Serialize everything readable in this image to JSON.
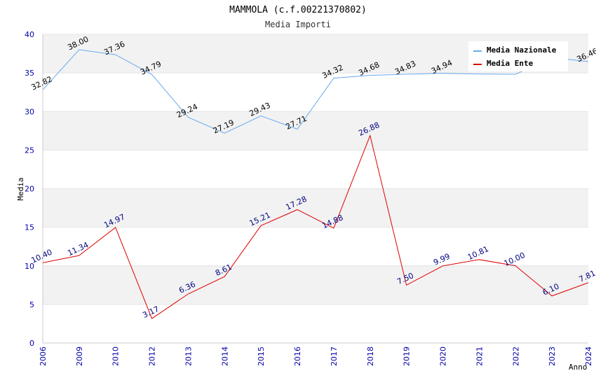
{
  "chart_data": {
    "type": "line",
    "title": "MAMMOLA (c.f.00221370802)",
    "subtitle": "Media Importi",
    "xlabel": "Anno",
    "ylabel": "Media",
    "ylim": [
      0,
      40
    ],
    "yticks": [
      0,
      5,
      10,
      15,
      20,
      25,
      30,
      35,
      40
    ],
    "categories": [
      "2006",
      "2009",
      "2010",
      "2012",
      "2013",
      "2014",
      "2015",
      "2016",
      "2017",
      "2018",
      "2019",
      "2020",
      "2021",
      "2022",
      "2023",
      "2024"
    ],
    "legend_position": "top-right",
    "series": [
      {
        "name": "Media Nazionale",
        "color": "#66aaee",
        "label_color": "#000000",
        "values": [
          32.82,
          38.0,
          37.36,
          34.79,
          29.24,
          27.19,
          29.43,
          27.71,
          34.32,
          34.68,
          34.83,
          34.94,
          34.85,
          34.82,
          37.0,
          36.46
        ],
        "labels": [
          "32.82",
          "38.00",
          "37.36",
          "34.79",
          "29.24",
          "27.19",
          "29.43",
          "27.71",
          "34.32",
          "34.68",
          "34.83",
          "34.94",
          "",
          "",
          "",
          "36.46"
        ]
      },
      {
        "name": "Media Ente",
        "color": "#dd0000",
        "label_color": "#000080",
        "values": [
          10.4,
          11.34,
          14.97,
          3.17,
          6.36,
          8.61,
          15.21,
          17.28,
          14.88,
          26.88,
          7.5,
          9.99,
          10.81,
          10.0,
          6.1,
          7.81
        ],
        "labels": [
          "10.40",
          "11.34",
          "14.97",
          "3.17",
          "6.36",
          "8.61",
          "15.21",
          "17.28",
          "14.88",
          "26.88",
          "7.50",
          "9.99",
          "10.81",
          "10.00",
          "6.10",
          "7.81"
        ]
      }
    ]
  }
}
